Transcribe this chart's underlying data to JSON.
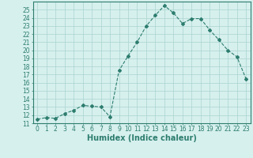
{
  "x": [
    0,
    1,
    2,
    3,
    4,
    5,
    6,
    7,
    8,
    9,
    10,
    11,
    12,
    13,
    14,
    15,
    16,
    17,
    18,
    19,
    20,
    21,
    22,
    23
  ],
  "y": [
    11.5,
    11.7,
    11.6,
    12.2,
    12.6,
    13.2,
    13.1,
    13.0,
    11.8,
    17.5,
    19.3,
    21.0,
    23.0,
    24.3,
    25.5,
    24.6,
    23.3,
    23.9,
    23.9,
    22.5,
    21.3,
    20.0,
    19.2,
    16.5
  ],
  "line_color": "#2d7d6e",
  "marker": "D",
  "marker_size": 2,
  "bg_color": "#d6f0ee",
  "grid_color": "#aad4cf",
  "xlabel": "Humidex (Indice chaleur)",
  "ylabel": "",
  "xlim": [
    -0.5,
    23.5
  ],
  "ylim": [
    11,
    26
  ],
  "yticks": [
    11,
    12,
    13,
    14,
    15,
    16,
    17,
    18,
    19,
    20,
    21,
    22,
    23,
    24,
    25
  ],
  "xticks": [
    0,
    1,
    2,
    3,
    4,
    5,
    6,
    7,
    8,
    9,
    10,
    11,
    12,
    13,
    14,
    15,
    16,
    17,
    18,
    19,
    20,
    21,
    22,
    23
  ],
  "tick_label_fontsize": 5.5,
  "xlabel_fontsize": 7,
  "axis_color": "#2d7d6e",
  "linewidth": 0.8
}
